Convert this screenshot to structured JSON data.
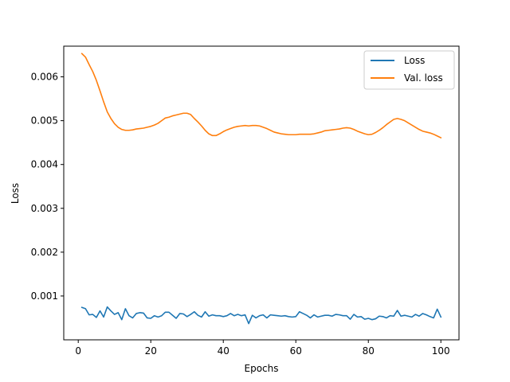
{
  "chart_data": {
    "type": "line",
    "title": "",
    "xlabel": "Epochs",
    "ylabel": "Loss",
    "xlim": [
      -4,
      105
    ],
    "ylim": [
      0.0,
      0.0067
    ],
    "xticks": [
      0,
      20,
      40,
      60,
      80,
      100
    ],
    "yticks": [
      0.001,
      0.002,
      0.003,
      0.004,
      0.005,
      0.006
    ],
    "ytick_labels": [
      "0.001",
      "0.002",
      "0.003",
      "0.004",
      "0.005",
      "0.006"
    ],
    "grid": false,
    "legend_position": "top-right",
    "x": [
      1,
      2,
      3,
      4,
      5,
      6,
      7,
      8,
      9,
      10,
      11,
      12,
      13,
      14,
      15,
      16,
      17,
      18,
      19,
      20,
      21,
      22,
      23,
      24,
      25,
      26,
      27,
      28,
      29,
      30,
      31,
      32,
      33,
      34,
      35,
      36,
      37,
      38,
      39,
      40,
      41,
      42,
      43,
      44,
      45,
      46,
      47,
      48,
      49,
      50,
      51,
      52,
      53,
      54,
      55,
      56,
      57,
      58,
      59,
      60,
      61,
      62,
      63,
      64,
      65,
      66,
      67,
      68,
      69,
      70,
      71,
      72,
      73,
      74,
      75,
      76,
      77,
      78,
      79,
      80,
      81,
      82,
      83,
      84,
      85,
      86,
      87,
      88,
      89,
      90,
      91,
      92,
      93,
      94,
      95,
      96,
      97,
      98,
      99,
      100
    ],
    "series": [
      {
        "name": "Loss",
        "color": "#1f77b4",
        "values": [
          0.00074,
          0.00071,
          0.00057,
          0.00058,
          0.00051,
          0.00066,
          0.00052,
          0.00075,
          0.00066,
          0.00058,
          0.00062,
          0.00046,
          0.00071,
          0.00055,
          0.0005,
          0.0006,
          0.00062,
          0.00061,
          0.0005,
          0.00049,
          0.00055,
          0.00052,
          0.00055,
          0.00063,
          0.00063,
          0.00056,
          0.00049,
          0.0006,
          0.00059,
          0.00053,
          0.00058,
          0.00064,
          0.00056,
          0.00052,
          0.00064,
          0.00054,
          0.00057,
          0.00055,
          0.00055,
          0.00053,
          0.00055,
          0.0006,
          0.00055,
          0.00058,
          0.00055,
          0.00057,
          0.00037,
          0.00056,
          0.0005,
          0.00055,
          0.00057,
          0.0005,
          0.00057,
          0.00056,
          0.00055,
          0.00054,
          0.00055,
          0.00053,
          0.00052,
          0.00053,
          0.00064,
          0.0006,
          0.00056,
          0.0005,
          0.00057,
          0.00052,
          0.00054,
          0.00056,
          0.00056,
          0.00054,
          0.00058,
          0.00057,
          0.00055,
          0.00055,
          0.00047,
          0.00058,
          0.00052,
          0.00053,
          0.00047,
          0.00049,
          0.00046,
          0.00048,
          0.00054,
          0.00053,
          0.0005,
          0.00055,
          0.00054,
          0.00067,
          0.00054,
          0.00056,
          0.00054,
          0.00052,
          0.00058,
          0.00054,
          0.0006,
          0.00057,
          0.00053,
          0.0005,
          0.0007,
          0.00052
        ]
      },
      {
        "name": "Val. loss",
        "color": "#ff7f0e",
        "values": [
          0.00653,
          0.00645,
          0.00628,
          0.00612,
          0.00592,
          0.00568,
          0.00543,
          0.0052,
          0.00505,
          0.00493,
          0.00485,
          0.0048,
          0.00478,
          0.00478,
          0.00479,
          0.00481,
          0.00482,
          0.00483,
          0.00485,
          0.00487,
          0.0049,
          0.00494,
          0.005,
          0.00506,
          0.00508,
          0.00511,
          0.00513,
          0.00515,
          0.00517,
          0.00517,
          0.00514,
          0.00505,
          0.00497,
          0.00488,
          0.00478,
          0.0047,
          0.00466,
          0.00466,
          0.0047,
          0.00475,
          0.00479,
          0.00482,
          0.00485,
          0.00487,
          0.00488,
          0.00489,
          0.00488,
          0.00489,
          0.00489,
          0.00488,
          0.00485,
          0.00482,
          0.00478,
          0.00474,
          0.00472,
          0.0047,
          0.00469,
          0.00468,
          0.00468,
          0.00468,
          0.00469,
          0.00469,
          0.00469,
          0.00469,
          0.0047,
          0.00472,
          0.00474,
          0.00477,
          0.00478,
          0.00479,
          0.0048,
          0.00481,
          0.00483,
          0.00484,
          0.00483,
          0.0048,
          0.00476,
          0.00473,
          0.0047,
          0.00468,
          0.00469,
          0.00473,
          0.00478,
          0.00484,
          0.00491,
          0.00497,
          0.00503,
          0.00505,
          0.00503,
          0.005,
          0.00495,
          0.0049,
          0.00485,
          0.0048,
          0.00476,
          0.00474,
          0.00472,
          0.00469,
          0.00465,
          0.00461
        ]
      }
    ]
  }
}
